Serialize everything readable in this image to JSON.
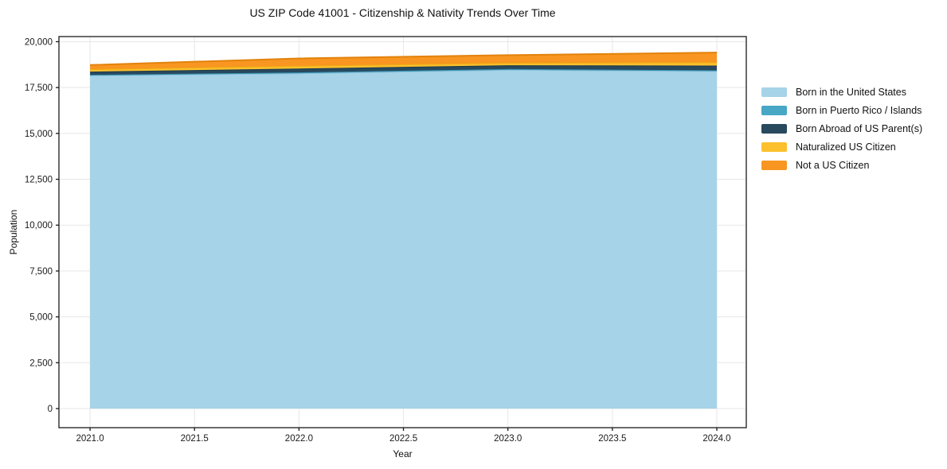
{
  "chart_data": {
    "type": "area",
    "stacked": true,
    "title": "US ZIP Code 41001 - Citizenship & Nativity Trends Over Time",
    "xlabel": "Year",
    "ylabel": "Population",
    "x": [
      2021,
      2022,
      2023,
      2024
    ],
    "series": [
      {
        "name": "Born in the United States",
        "color": "#a6d3e8",
        "edge": "#8cc2dc",
        "values": [
          18170,
          18280,
          18470,
          18400
        ]
      },
      {
        "name": "Born in Puerto Rico / Islands",
        "color": "#47a7c5",
        "edge": "#3b93b1",
        "values": [
          25,
          45,
          40,
          40
        ]
      },
      {
        "name": "Born Abroad of US Parent(s)",
        "color": "#28495e",
        "edge": "#1e3a4c",
        "values": [
          175,
          215,
          205,
          260
        ]
      },
      {
        "name": "Naturalized US Citizen",
        "color": "#fcc02d",
        "edge": "#efab14",
        "values": [
          130,
          145,
          130,
          175
        ]
      },
      {
        "name": "Not a US Citizen",
        "color": "#f89621",
        "edge": "#e2820c",
        "values": [
          230,
          405,
          420,
          535
        ]
      }
    ],
    "totals": [
      18730,
      19090,
      19265,
      19410
    ],
    "xticks": [
      2021.0,
      2021.5,
      2022.0,
      2022.5,
      2023.0,
      2023.5,
      2024.0
    ],
    "xtick_labels": [
      "2021.0",
      "2021.5",
      "2022.0",
      "2022.5",
      "2023.0",
      "2023.5",
      "2024.0"
    ],
    "yticks": [
      0,
      2500,
      5000,
      7500,
      10000,
      12500,
      15000,
      17500,
      20000
    ],
    "ytick_labels": [
      "0",
      "2,500",
      "5,000",
      "7,500",
      "10,000",
      "12,500",
      "15,000",
      "17,500",
      "20,000"
    ],
    "xlim": [
      2020.851,
      2024.141
    ],
    "ylim": [
      -1040,
      20280
    ],
    "grid": true,
    "grid_color": "#e7e7e7",
    "border_color": "#1a1a1a",
    "legend_position": "right-outside"
  }
}
